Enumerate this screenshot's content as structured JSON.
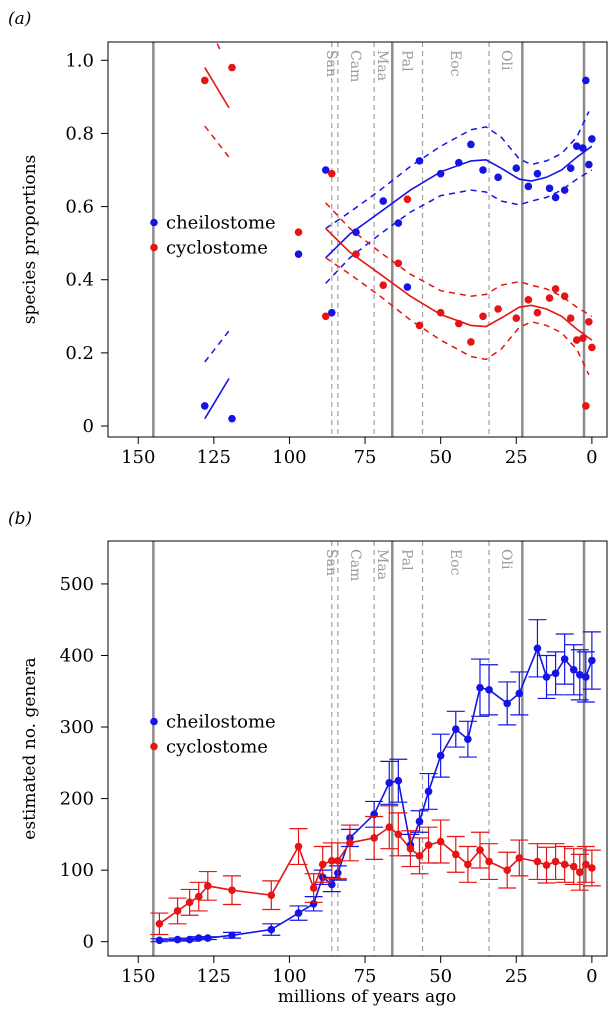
{
  "xlabel": "millions of years ago",
  "colors": {
    "cheilostome": "#1414e6",
    "cyclostome": "#e61414",
    "boundary_major": "#8c8c8c",
    "boundary_minor": "#a0a0a0",
    "period_text": "#9a9a9a"
  },
  "periods": [
    {
      "label": "San",
      "x": 86
    },
    {
      "label": "Cam",
      "x": 78
    },
    {
      "label": "Maa",
      "x": 69
    },
    {
      "label": "Pal",
      "x": 61
    },
    {
      "label": "Eoc",
      "x": 45
    },
    {
      "label": "Oli",
      "x": 28
    }
  ],
  "boundaries_major": [
    145,
    66,
    23,
    2.6
  ],
  "boundaries_minor": [
    86,
    84,
    72,
    56,
    34
  ],
  "chart_data": [
    {
      "panel": "(a)",
      "type": "scatter",
      "ylabel": "species proportions",
      "xlim": [
        160,
        -5
      ],
      "ylim": [
        -0.03,
        1.05
      ],
      "xticks": [
        150,
        125,
        100,
        75,
        50,
        25,
        0
      ],
      "yticks": [
        0,
        0.2,
        0.4,
        0.6,
        0.8,
        1.0
      ],
      "yticklabels": [
        "0",
        "0.2",
        "0.4",
        "0.6",
        "0.8",
        "1.0"
      ],
      "legend_position": "left-middle",
      "series": [
        {
          "name": "cheilostome",
          "color": "#1414e6",
          "points": [
            [
              128,
              0.055
            ],
            [
              119,
              0.02
            ],
            [
              97,
              0.47
            ],
            [
              88,
              0.7
            ],
            [
              86,
              0.31
            ],
            [
              78,
              0.53
            ],
            [
              69,
              0.615
            ],
            [
              64,
              0.555
            ],
            [
              61,
              0.38
            ],
            [
              57,
              0.725
            ],
            [
              50,
              0.69
            ],
            [
              44,
              0.72
            ],
            [
              40,
              0.77
            ],
            [
              36,
              0.7
            ],
            [
              31,
              0.68
            ],
            [
              25,
              0.705
            ],
            [
              21,
              0.655
            ],
            [
              18,
              0.69
            ],
            [
              14,
              0.65
            ],
            [
              12,
              0.625
            ],
            [
              9,
              0.645
            ],
            [
              7,
              0.705
            ],
            [
              5,
              0.765
            ],
            [
              3,
              0.76
            ],
            [
              2,
              0.945
            ],
            [
              1,
              0.715
            ],
            [
              0,
              0.785
            ]
          ],
          "early_fit": [
            [
              128,
              0.02
            ],
            [
              120,
              0.13
            ]
          ],
          "early_band": [
            [
              [
                128,
                0.175
              ],
              [
                120,
                0.26
              ]
            ]
          ],
          "fit": [
            [
              88,
              0.46
            ],
            [
              80,
              0.525
            ],
            [
              70,
              0.585
            ],
            [
              60,
              0.645
            ],
            [
              50,
              0.695
            ],
            [
              40,
              0.725
            ],
            [
              35,
              0.728
            ],
            [
              30,
              0.705
            ],
            [
              24,
              0.675
            ],
            [
              20,
              0.67
            ],
            [
              15,
              0.68
            ],
            [
              10,
              0.7
            ],
            [
              5,
              0.735
            ],
            [
              0,
              0.765
            ]
          ],
          "band_upper": [
            [
              88,
              0.54
            ],
            [
              80,
              0.585
            ],
            [
              70,
              0.645
            ],
            [
              60,
              0.71
            ],
            [
              50,
              0.765
            ],
            [
              40,
              0.81
            ],
            [
              35,
              0.818
            ],
            [
              30,
              0.79
            ],
            [
              24,
              0.73
            ],
            [
              20,
              0.715
            ],
            [
              15,
              0.725
            ],
            [
              10,
              0.745
            ],
            [
              5,
              0.79
            ],
            [
              1,
              0.86
            ]
          ],
          "band_lower": [
            [
              88,
              0.39
            ],
            [
              80,
              0.46
            ],
            [
              70,
              0.525
            ],
            [
              60,
              0.585
            ],
            [
              50,
              0.63
            ],
            [
              40,
              0.645
            ],
            [
              35,
              0.64
            ],
            [
              30,
              0.615
            ],
            [
              24,
              0.605
            ],
            [
              20,
              0.615
            ],
            [
              15,
              0.625
            ],
            [
              10,
              0.645
            ],
            [
              5,
              0.675
            ],
            [
              0,
              0.7
            ]
          ]
        },
        {
          "name": "cyclostome",
          "color": "#e61414",
          "points": [
            [
              128,
              0.945
            ],
            [
              119,
              0.98
            ],
            [
              97,
              0.53
            ],
            [
              88,
              0.3
            ],
            [
              86,
              0.69
            ],
            [
              78,
              0.47
            ],
            [
              69,
              0.385
            ],
            [
              64,
              0.445
            ],
            [
              61,
              0.62
            ],
            [
              57,
              0.275
            ],
            [
              50,
              0.31
            ],
            [
              44,
              0.28
            ],
            [
              40,
              0.23
            ],
            [
              36,
              0.3
            ],
            [
              31,
              0.32
            ],
            [
              25,
              0.295
            ],
            [
              21,
              0.345
            ],
            [
              18,
              0.31
            ],
            [
              14,
              0.35
            ],
            [
              12,
              0.375
            ],
            [
              9,
              0.355
            ],
            [
              7,
              0.295
            ],
            [
              5,
              0.235
            ],
            [
              3,
              0.24
            ],
            [
              2,
              0.055
            ],
            [
              1,
              0.285
            ],
            [
              0,
              0.215
            ]
          ],
          "early_fit": [
            [
              128,
              0.98
            ],
            [
              120,
              0.87
            ]
          ],
          "early_band": [
            [
              [
                128,
                0.82
              ],
              [
                120,
                0.735
              ]
            ],
            [
              [
                127,
                1.1
              ],
              [
                123,
                1.03
              ]
            ]
          ],
          "fit": [
            [
              88,
              0.54
            ],
            [
              80,
              0.475
            ],
            [
              70,
              0.415
            ],
            [
              60,
              0.355
            ],
            [
              50,
              0.305
            ],
            [
              40,
              0.275
            ],
            [
              35,
              0.272
            ],
            [
              30,
              0.295
            ],
            [
              24,
              0.325
            ],
            [
              20,
              0.33
            ],
            [
              15,
              0.32
            ],
            [
              10,
              0.3
            ],
            [
              5,
              0.265
            ],
            [
              0,
              0.235
            ]
          ],
          "band_upper": [
            [
              88,
              0.61
            ],
            [
              80,
              0.54
            ],
            [
              70,
              0.475
            ],
            [
              60,
              0.415
            ],
            [
              50,
              0.37
            ],
            [
              40,
              0.355
            ],
            [
              35,
              0.36
            ],
            [
              30,
              0.385
            ],
            [
              24,
              0.395
            ],
            [
              20,
              0.385
            ],
            [
              15,
              0.375
            ],
            [
              10,
              0.355
            ],
            [
              5,
              0.325
            ],
            [
              0,
              0.3
            ]
          ],
          "band_lower": [
            [
              88,
              0.46
            ],
            [
              80,
              0.415
            ],
            [
              70,
              0.355
            ],
            [
              60,
              0.29
            ],
            [
              50,
              0.235
            ],
            [
              40,
              0.19
            ],
            [
              35,
              0.182
            ],
            [
              30,
              0.21
            ],
            [
              24,
              0.27
            ],
            [
              20,
              0.285
            ],
            [
              15,
              0.275
            ],
            [
              10,
              0.255
            ],
            [
              5,
              0.21
            ],
            [
              1,
              0.14
            ]
          ]
        }
      ]
    },
    {
      "panel": "(b)",
      "type": "line",
      "ylabel": "estimated no. genera",
      "xlim": [
        160,
        -5
      ],
      "ylim": [
        -20,
        560
      ],
      "xticks": [
        150,
        125,
        100,
        75,
        50,
        25,
        0
      ],
      "yticks": [
        0,
        100,
        200,
        300,
        400,
        500
      ],
      "legend_position": "left-middle",
      "series": [
        {
          "name": "cheilostome",
          "color": "#1414e6",
          "points": [
            [
              143,
              2
            ],
            [
              137,
              3
            ],
            [
              133,
              3
            ],
            [
              130,
              5
            ],
            [
              127,
              5
            ],
            [
              119,
              9
            ],
            [
              106,
              17
            ],
            [
              97,
              40
            ],
            [
              92,
              53
            ],
            [
              89,
              90
            ],
            [
              86,
              80
            ],
            [
              84,
              96
            ],
            [
              80,
              145
            ],
            [
              72,
              178
            ],
            [
              67,
              222
            ],
            [
              64,
              225
            ],
            [
              60,
              135
            ],
            [
              57,
              168
            ],
            [
              54,
              210
            ],
            [
              50,
              260
            ],
            [
              45,
              297
            ],
            [
              41,
              283
            ],
            [
              37,
              355
            ],
            [
              34,
              352
            ],
            [
              28,
              333
            ],
            [
              24,
              347
            ],
            [
              18,
              410
            ],
            [
              15,
              370
            ],
            [
              12,
              375
            ],
            [
              9,
              395
            ],
            [
              6,
              380
            ],
            [
              4,
              373
            ],
            [
              2,
              370
            ],
            [
              0,
              393
            ]
          ],
          "err": [
            2,
            2,
            2,
            2,
            2,
            4,
            8,
            10,
            10,
            10,
            10,
            10,
            12,
            18,
            30,
            30,
            15,
            15,
            25,
            30,
            25,
            25,
            40,
            35,
            30,
            30,
            40,
            30,
            30,
            35,
            35,
            35,
            35,
            40
          ]
        },
        {
          "name": "cyclostome",
          "color": "#e61414",
          "points": [
            [
              143,
              25
            ],
            [
              137,
              43
            ],
            [
              133,
              55
            ],
            [
              130,
              63
            ],
            [
              127,
              78
            ],
            [
              119,
              72
            ],
            [
              106,
              65
            ],
            [
              97,
              133
            ],
            [
              92,
              75
            ],
            [
              89,
              108
            ],
            [
              86,
              113
            ],
            [
              84,
              113
            ],
            [
              80,
              138
            ],
            [
              72,
              145
            ],
            [
              67,
              160
            ],
            [
              64,
              150
            ],
            [
              60,
              130
            ],
            [
              57,
              120
            ],
            [
              54,
              135
            ],
            [
              50,
              140
            ],
            [
              45,
              122
            ],
            [
              41,
              108
            ],
            [
              37,
              128
            ],
            [
              34,
              112
            ],
            [
              28,
              100
            ],
            [
              24,
              117
            ],
            [
              18,
              112
            ],
            [
              15,
              107
            ],
            [
              12,
              112
            ],
            [
              9,
              108
            ],
            [
              6,
              105
            ],
            [
              4,
              97
            ],
            [
              2,
              108
            ],
            [
              0,
              103
            ]
          ],
          "err": [
            15,
            18,
            18,
            20,
            20,
            20,
            20,
            25,
            20,
            25,
            25,
            25,
            25,
            30,
            30,
            30,
            25,
            25,
            25,
            30,
            25,
            25,
            25,
            25,
            25,
            25,
            25,
            25,
            25,
            25,
            25,
            25,
            25,
            25
          ]
        }
      ]
    }
  ]
}
